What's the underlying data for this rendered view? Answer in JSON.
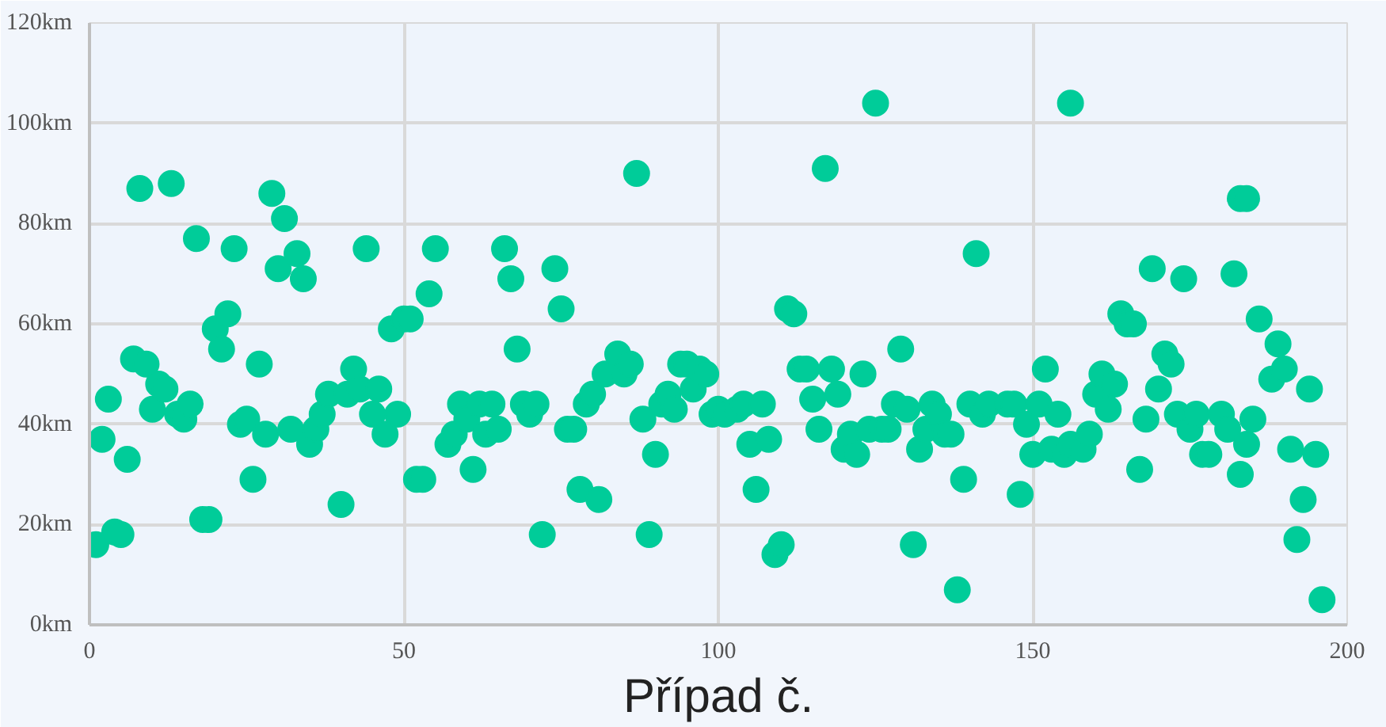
{
  "chart_data": {
    "type": "scatter",
    "xlabel": "Případ č.",
    "color": "#00cc99",
    "marker": "circle",
    "grid": true,
    "x": [
      1,
      2,
      3,
      4,
      5,
      6,
      7,
      8,
      9,
      10,
      11,
      12,
      13,
      14,
      15,
      16,
      17,
      18,
      19,
      20,
      21,
      22,
      23,
      24,
      25,
      26,
      27,
      28,
      29,
      30,
      31,
      32,
      33,
      34,
      35,
      36,
      37,
      38,
      40,
      41,
      42,
      43,
      44,
      45,
      46,
      47,
      48,
      49,
      50,
      51,
      52,
      53,
      54,
      55,
      57,
      58,
      59,
      60,
      61,
      62,
      63,
      64,
      65,
      66,
      67,
      68,
      69,
      70,
      71,
      72,
      74,
      75,
      76,
      77,
      78,
      79,
      80,
      81,
      82,
      84,
      85,
      86,
      87,
      88,
      89,
      90,
      91,
      92,
      93,
      94,
      95,
      96,
      97,
      98,
      99,
      100,
      101,
      103,
      104,
      105,
      106,
      107,
      108,
      109,
      110,
      111,
      112,
      113,
      114,
      115,
      116,
      117,
      118,
      119,
      120,
      121,
      122,
      123,
      124,
      125,
      126,
      127,
      128,
      129,
      130,
      131,
      132,
      133,
      134,
      135,
      136,
      137,
      138,
      139,
      140,
      141,
      142,
      143,
      146,
      147,
      148,
      149,
      150,
      151,
      152,
      153,
      154,
      155,
      156,
      156,
      158,
      159,
      160,
      161,
      162,
      163,
      164,
      165,
      166,
      167,
      168,
      169,
      170,
      171,
      172,
      173,
      174,
      175,
      176,
      177,
      178,
      180,
      181,
      182,
      183,
      183,
      184,
      184,
      185,
      186,
      188,
      189,
      190,
      191,
      192,
      193,
      194,
      195,
      196
    ],
    "values": [
      16,
      37,
      45,
      18.5,
      18,
      33,
      53,
      87,
      52,
      43,
      48,
      47,
      88,
      42,
      41,
      44,
      77,
      21,
      21,
      59,
      55,
      62,
      75,
      40,
      41,
      29,
      52,
      38,
      86,
      71,
      81,
      39,
      74,
      69,
      36,
      39,
      42,
      46,
      24,
      46,
      51,
      47,
      75,
      42,
      47,
      38,
      59,
      42,
      61,
      61,
      29,
      29,
      66,
      75,
      36,
      38,
      44,
      41,
      31,
      44,
      38,
      44,
      39,
      75,
      69,
      55,
      44,
      42,
      44,
      18,
      71,
      63,
      39,
      39,
      27,
      44,
      46,
      25,
      50,
      54,
      50,
      52,
      90,
      41,
      18,
      34,
      44,
      46,
      43,
      52,
      52,
      47,
      51,
      50,
      42,
      43,
      42,
      43,
      44,
      36,
      27,
      44,
      37,
      14,
      16,
      63,
      62,
      51,
      51,
      45,
      39,
      91,
      51,
      46,
      35,
      38,
      34,
      50,
      39,
      104,
      39,
      39,
      44,
      55,
      43,
      16,
      35,
      39,
      44,
      42,
      38,
      38,
      7,
      29,
      44,
      74,
      42,
      44,
      44,
      44,
      26,
      40,
      34,
      44,
      51,
      35,
      42,
      34,
      36,
      104,
      35,
      38,
      46,
      50,
      43,
      48,
      62,
      60,
      60,
      31,
      41,
      71,
      47,
      54,
      52,
      42,
      69,
      39,
      42,
      34,
      34,
      42,
      39,
      70,
      30,
      85,
      36,
      85,
      41,
      61,
      49,
      56,
      51,
      35,
      17,
      25,
      47,
      34,
      5
    ],
    "xlim": [
      0,
      200
    ],
    "xticks": [
      0,
      50,
      100,
      150,
      200
    ],
    "ylim": [
      0,
      120
    ],
    "yticks": [
      {
        "value": 0,
        "label": "0km"
      },
      {
        "value": 20,
        "label": "20km"
      },
      {
        "value": 40,
        "label": "40km"
      },
      {
        "value": 60,
        "label": "60km"
      },
      {
        "value": 80,
        "label": "80km"
      },
      {
        "value": 100,
        "label": "100km"
      },
      {
        "value": 120,
        "label": "120km"
      }
    ]
  }
}
